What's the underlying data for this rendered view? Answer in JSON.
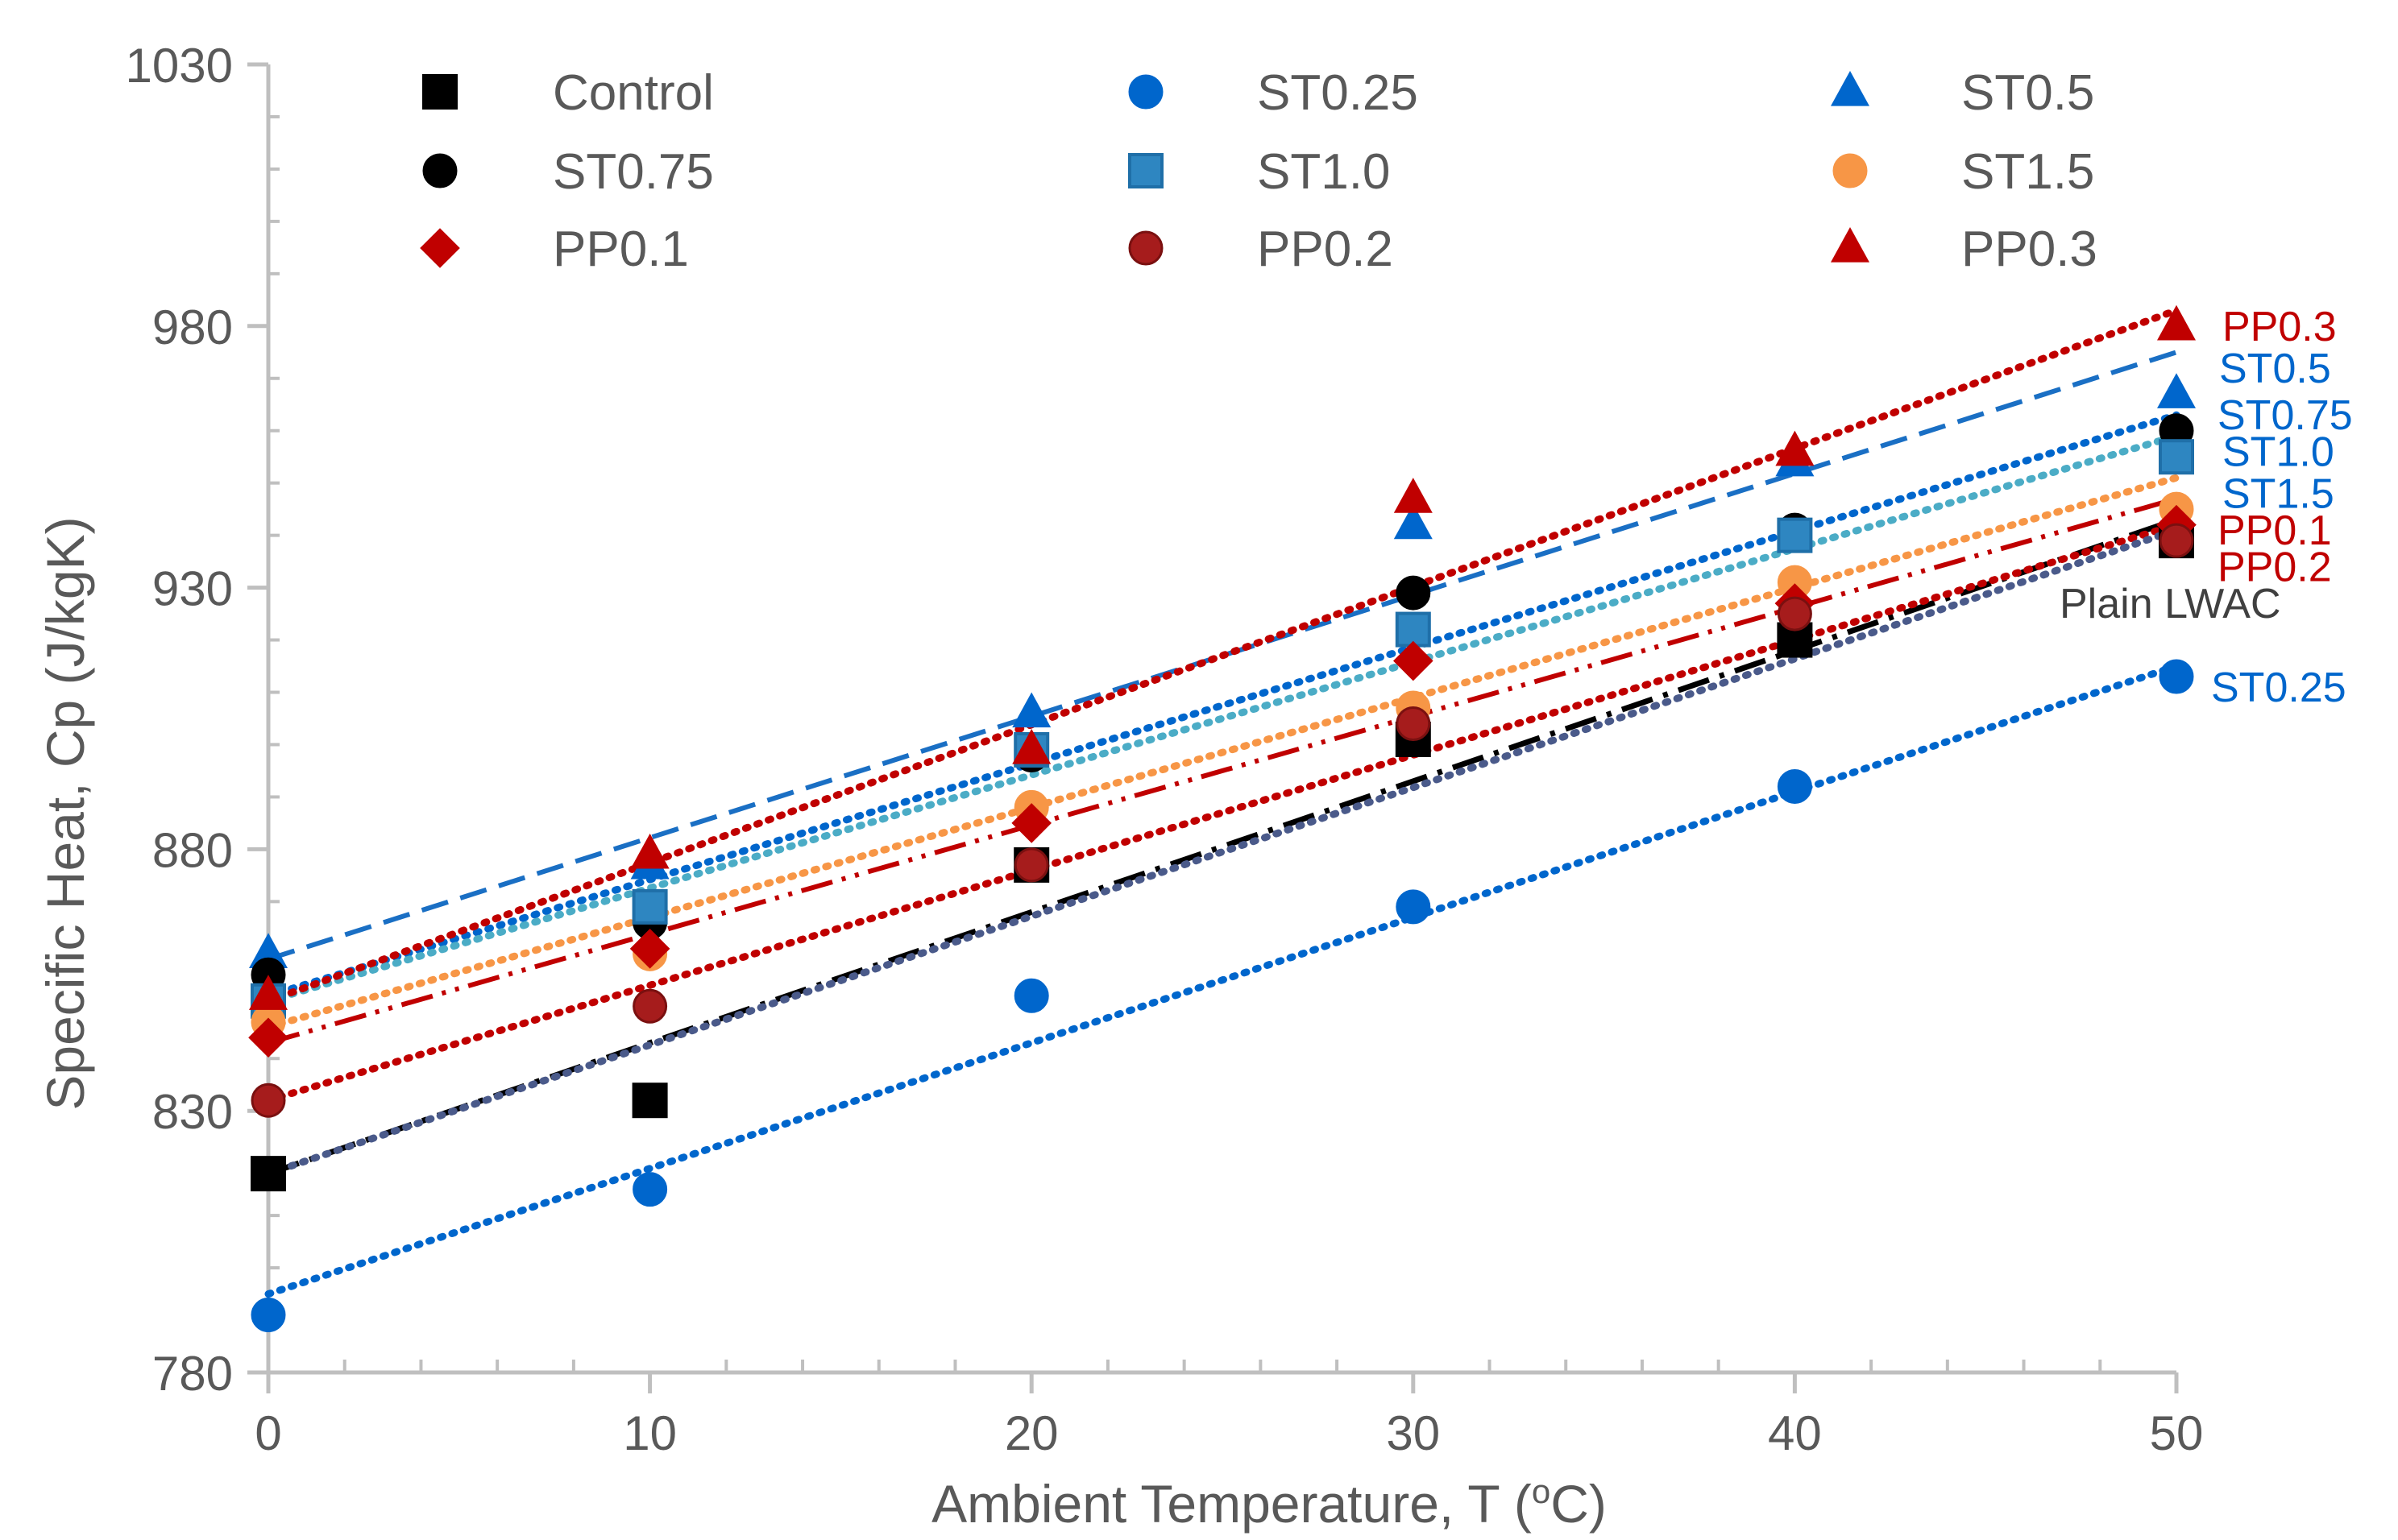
{
  "chart_data": {
    "type": "scatter",
    "xlabel": "Ambient Temperature, T (",
    "xlabel_sup": "o",
    "xlabel_tail": "C)",
    "ylabel": "Specific Heat, Cp  (J/kgK)",
    "xlim": [
      0,
      50
    ],
    "ylim": [
      780,
      1030
    ],
    "x_major_ticks": [
      0,
      10,
      20,
      30,
      40,
      50
    ],
    "x_tick_labels": [
      "0",
      "10",
      "20",
      "30",
      "40",
      "50"
    ],
    "x_minor_step": 2,
    "y_major_ticks": [
      780,
      830,
      880,
      930,
      980,
      1030
    ],
    "y_tick_labels": [
      "780",
      "830",
      "880",
      "930",
      "980",
      "1030"
    ],
    "y_minor_step": 10,
    "grid": false,
    "legend_position": "top, inside plot, 3 columns",
    "x": [
      0,
      10,
      20,
      30,
      40,
      50
    ],
    "series": [
      {
        "name": "Control",
        "marker": "square",
        "color": "#000000",
        "values": [
          818,
          832,
          877,
          901,
          920,
          939
        ],
        "fit": [
          818,
          943
        ],
        "fit_style": "dashdot",
        "fit_color": "#000000"
      },
      {
        "name": "ST0.25",
        "marker": "circle",
        "color": "#0066CC",
        "values": [
          791,
          815,
          852,
          869,
          892,
          913
        ],
        "fit": [
          795,
          915
        ],
        "fit_style": "dotted",
        "fit_color": "#0066CC"
      },
      {
        "name": "ST0.5",
        "marker": "triangle",
        "color": "#0066CC",
        "values": [
          860,
          877,
          906,
          942,
          954,
          967
        ],
        "fit": [
          859,
          975
        ],
        "fit_style": "dashed",
        "fit_color": "#1A6FC4"
      },
      {
        "name": "ST0.75",
        "marker": "circle",
        "color": "#000000",
        "values": [
          856,
          866,
          898,
          929,
          941,
          960
        ],
        "fit": [
          852,
          963
        ],
        "fit_style": "dotted",
        "fit_color": "#0066CC"
      },
      {
        "name": "ST1.0",
        "marker": "square",
        "color": "#2E86C1",
        "values": [
          851,
          869,
          899,
          922,
          940,
          955
        ],
        "fit": [
          851,
          959
        ],
        "fit_style": "dotted",
        "fit_color": "#4BACC6"
      },
      {
        "name": "ST1.5",
        "marker": "circle",
        "color": "#F79646",
        "values": [
          847,
          860,
          888,
          907,
          931,
          945
        ],
        "fit": [
          846,
          951
        ],
        "fit_style": "dotted",
        "fit_color": "#F79646"
      },
      {
        "name": "PP0.1",
        "marker": "diamond",
        "color": "#C00000",
        "values": [
          844,
          861,
          885,
          916,
          927,
          942
        ],
        "fit": [
          843,
          947
        ],
        "fit_style": "dashdotdot",
        "fit_color": "#C00000"
      },
      {
        "name": "PP0.2",
        "marker": "circle",
        "color": "#A61C1C",
        "values": [
          832,
          850,
          877,
          904,
          925,
          939
        ],
        "fit": [
          832,
          942
        ],
        "fit_style": "dotted",
        "fit_color": "#C00000"
      },
      {
        "name": "PP0.3",
        "marker": "triangle",
        "color": "#C00000",
        "values": [
          852,
          879,
          899,
          947,
          956,
          980
        ],
        "fit": [
          851,
          983
        ],
        "fit_style": "dotted",
        "fit_color": "#C00000"
      },
      {
        "name": "Plain LWAC",
        "marker": "none",
        "color": "#404040",
        "values": [],
        "fit": [
          818,
          941
        ],
        "fit_style": "dotted",
        "fit_color": "#4A5A8A"
      }
    ],
    "annotations": [
      {
        "text": "PP0.3",
        "color": "#C00000",
        "y": 980
      },
      {
        "text": "ST0.5",
        "color": "#0066CC",
        "y": 972
      },
      {
        "text": "ST0.75",
        "color": "#0066CC",
        "y": 963
      },
      {
        "text": "ST1.0",
        "color": "#0066CC",
        "y": 956
      },
      {
        "text": "ST1.5",
        "color": "#0066CC",
        "y": 948
      },
      {
        "text": "PP0.1",
        "color": "#C00000",
        "y": 941
      },
      {
        "text": "PP0.2",
        "color": "#C00000",
        "y": 934
      },
      {
        "text": "Plain LWAC",
        "color": "#404040",
        "y": 927
      },
      {
        "text": "ST0.25",
        "color": "#0066CC",
        "y": 911
      }
    ]
  }
}
